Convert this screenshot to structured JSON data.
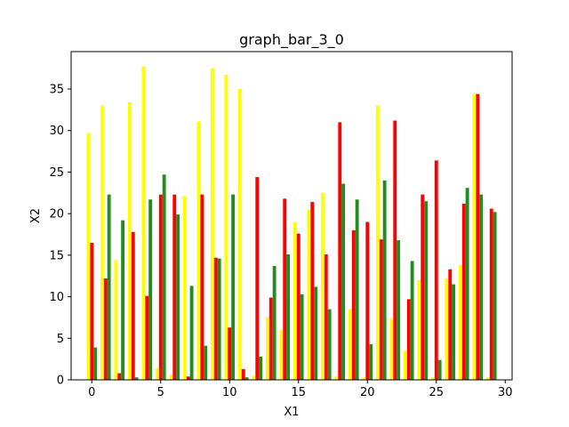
{
  "chart_data": {
    "type": "bar",
    "title": "graph_bar_3_0",
    "xlabel": "X1",
    "ylabel": "X2",
    "xlim": [
      -1.5,
      30.5
    ],
    "ylim": [
      0,
      39.5
    ],
    "xticks": [
      0,
      5,
      10,
      15,
      20,
      25,
      30
    ],
    "yticks": [
      0,
      5,
      10,
      15,
      20,
      25,
      30,
      35
    ],
    "grid": false,
    "x": [
      0,
      1,
      2,
      3,
      4,
      5,
      6,
      7,
      8,
      9,
      10,
      11,
      12,
      13,
      14,
      15,
      16,
      17,
      18,
      19,
      20,
      21,
      22,
      23,
      24,
      25,
      26,
      27,
      28,
      29
    ],
    "series": [
      {
        "color": "#ffff00",
        "offset": -0.25,
        "values": [
          29.7,
          33.0,
          14.4,
          33.4,
          37.7,
          1.4,
          0.6,
          22.1,
          31.1,
          37.5,
          36.7,
          35.0,
          0.5,
          7.5,
          6.0,
          19.0,
          20.5,
          22.5,
          0.4,
          8.5,
          0.3,
          33.0,
          7.4,
          3.5,
          12.0,
          0.3,
          12.2,
          13.8,
          34.4,
          0.3
        ]
      },
      {
        "color": "#ff0000",
        "offset": 0,
        "values": [
          16.5,
          12.2,
          0.8,
          17.8,
          10.1,
          22.3,
          22.3,
          0.4,
          22.3,
          14.7,
          6.3,
          1.3,
          24.4,
          9.9,
          21.8,
          17.6,
          21.4,
          15.1,
          31.0,
          18.0,
          19.0,
          16.9,
          31.2,
          9.7,
          22.3,
          26.4,
          13.3,
          21.2,
          34.4,
          20.6
        ]
      },
      {
        "color": "#228b22",
        "offset": 0.25,
        "values": [
          3.9,
          22.3,
          19.2,
          0.3,
          21.7,
          24.7,
          19.9,
          11.3,
          4.1,
          14.6,
          22.3,
          0.3,
          2.8,
          13.7,
          15.1,
          10.3,
          11.2,
          8.5,
          23.6,
          21.7,
          4.3,
          24.0,
          16.8,
          14.3,
          21.5,
          2.4,
          11.5,
          23.1,
          22.3,
          20.2
        ]
      }
    ]
  }
}
